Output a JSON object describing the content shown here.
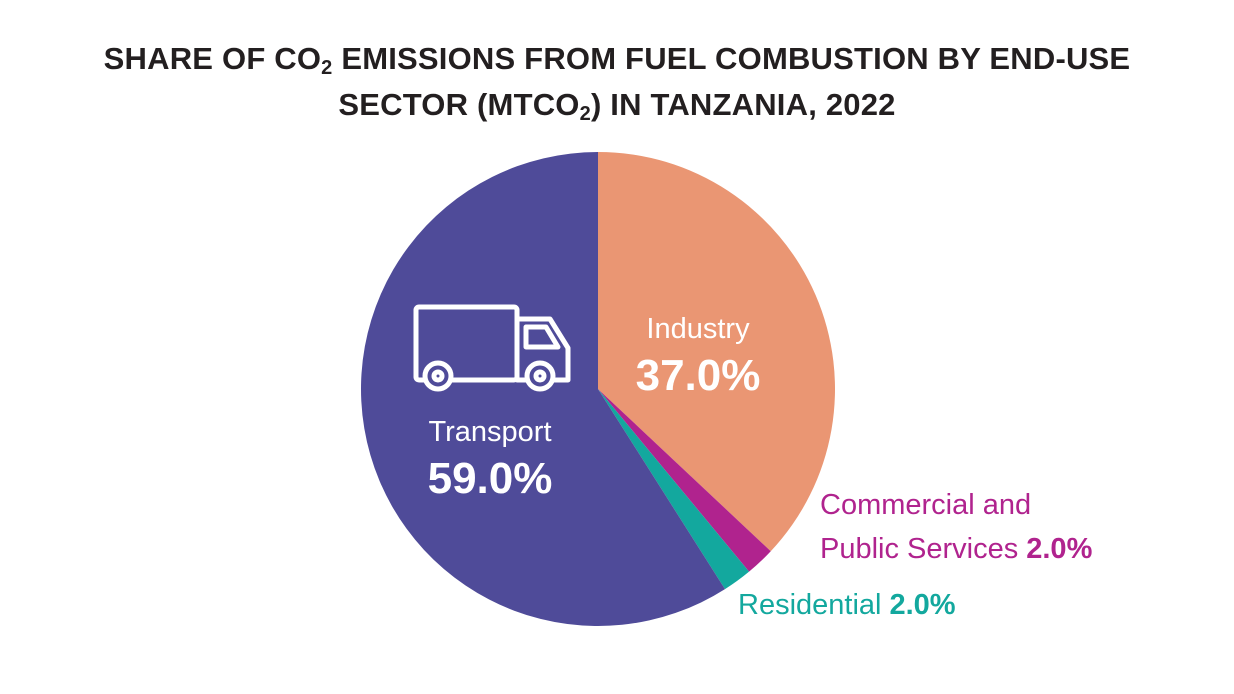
{
  "title": {
    "line1_part1": "SHARE OF CO",
    "line1_sub": "2",
    "line1_part2": " EMISSIONS FROM FUEL COMBUSTION BY END-USE",
    "line2_part1": "SECTOR (MTCO",
    "line2_sub": "2",
    "line2_part2": ") IN TANZANIA, 2022"
  },
  "chart_data": {
    "type": "pie",
    "title": "SHARE OF CO2 EMISSIONS FROM FUEL COMBUSTION BY END-USE SECTOR (MTCO2) IN TANZANIA, 2022",
    "start_angle": "12 o'clock, clockwise",
    "slices": [
      {
        "name": "Industry",
        "value": 37.0,
        "value_label": "37.0%",
        "color": "#ea9673",
        "label_color": "#ffffff"
      },
      {
        "name": "Commercial and Public Services",
        "label_line1": "Commercial and",
        "label_line2": "Public Services",
        "value": 2.0,
        "value_label": "2.0%",
        "color": "#b0238e",
        "label_color": "#b0238e"
      },
      {
        "name": "Residential",
        "value": 2.0,
        "value_label": "2.0%",
        "color": "#13a89e",
        "label_color": "#13a89e"
      },
      {
        "name": "Transport",
        "value": 59.0,
        "value_label": "59.0%",
        "color": "#4f4b99",
        "label_color": "#ffffff",
        "icon": "truck-icon"
      }
    ]
  }
}
